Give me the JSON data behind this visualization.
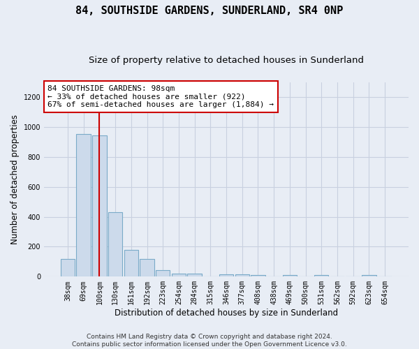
{
  "title": "84, SOUTHSIDE GARDENS, SUNDERLAND, SR4 0NP",
  "subtitle": "Size of property relative to detached houses in Sunderland",
  "xlabel": "Distribution of detached houses by size in Sunderland",
  "ylabel": "Number of detached properties",
  "categories": [
    "38sqm",
    "69sqm",
    "100sqm",
    "130sqm",
    "161sqm",
    "192sqm",
    "223sqm",
    "254sqm",
    "284sqm",
    "315sqm",
    "346sqm",
    "377sqm",
    "408sqm",
    "438sqm",
    "469sqm",
    "500sqm",
    "531sqm",
    "562sqm",
    "592sqm",
    "623sqm",
    "654sqm"
  ],
  "values": [
    120,
    955,
    945,
    430,
    180,
    120,
    45,
    20,
    20,
    0,
    15,
    15,
    10,
    0,
    10,
    0,
    10,
    0,
    0,
    10,
    0
  ],
  "bar_color": "#ccdaeb",
  "bar_edge_color": "#7aaac8",
  "bar_edge_width": 0.8,
  "vline_index": 2,
  "vline_color": "#cc0000",
  "annotation_line1": "84 SOUTHSIDE GARDENS: 98sqm",
  "annotation_line2": "← 33% of detached houses are smaller (922)",
  "annotation_line3": "67% of semi-detached houses are larger (1,884) →",
  "annotation_box_color": "#ffffff",
  "annotation_box_edge_color": "#cc0000",
  "ylim": [
    0,
    1300
  ],
  "yticks": [
    0,
    200,
    400,
    600,
    800,
    1000,
    1200
  ],
  "grid_color": "#c8d0e0",
  "background_color": "#e8edf5",
  "axes_background": "#e8edf5",
  "footer_line1": "Contains HM Land Registry data © Crown copyright and database right 2024.",
  "footer_line2": "Contains public sector information licensed under the Open Government Licence v3.0.",
  "title_fontsize": 11,
  "subtitle_fontsize": 9.5,
  "xlabel_fontsize": 8.5,
  "ylabel_fontsize": 8.5,
  "tick_fontsize": 7,
  "annotation_fontsize": 8,
  "footer_fontsize": 6.5
}
